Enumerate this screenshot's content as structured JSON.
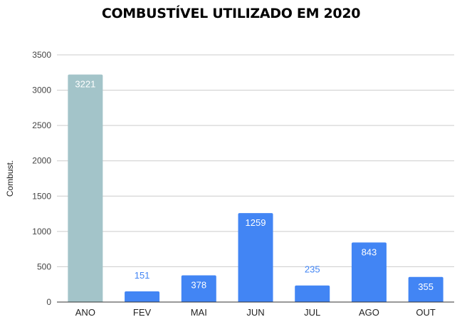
{
  "chart_data": {
    "type": "bar",
    "title": "COMBUSTÍVEL UTILIZADO EM 2020",
    "xlabel": "",
    "ylabel": "Combust.",
    "categories": [
      "ANO",
      "FEV",
      "MAI",
      "JUN",
      "JUL",
      "AGO",
      "OUT"
    ],
    "values": [
      3221,
      151,
      378,
      1259,
      235,
      843,
      355
    ],
    "data_labels": [
      "3221",
      "151",
      "378",
      "1259",
      "235",
      "843",
      "355"
    ],
    "ylim": [
      0,
      3500
    ],
    "yticks": [
      0,
      500,
      1000,
      1500,
      2000,
      2500,
      3000,
      3500
    ],
    "grid": true,
    "legend": "none",
    "colors": {
      "highlight_bar": "#a3c4c9",
      "bar": "#4285f4",
      "label_inside": "#ffffff",
      "label_outside": "#4285f4",
      "grid": "#cccccc",
      "axis": "#333333"
    },
    "highlight_categories": [
      "ANO"
    ]
  }
}
